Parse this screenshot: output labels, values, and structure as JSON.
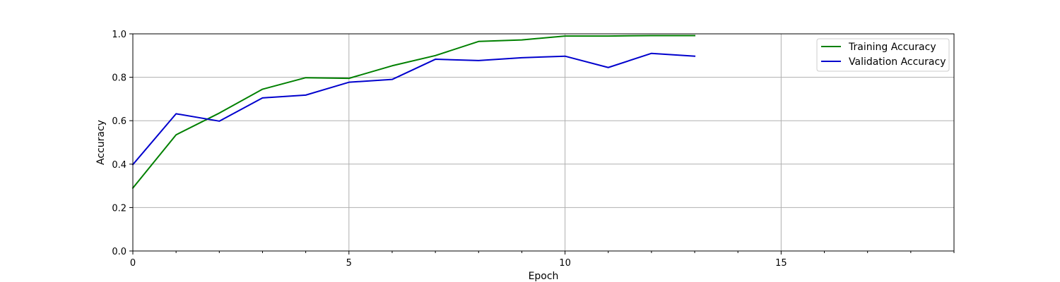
{
  "chart_data": {
    "type": "line",
    "title": "",
    "xlabel": "Epoch",
    "ylabel": "Accuracy",
    "xlim": [
      0,
      19
    ],
    "ylim": [
      0.0,
      1.0
    ],
    "x_ticks": [
      0,
      5,
      10,
      15
    ],
    "x_tick_labels": [
      "0",
      "5",
      "10",
      "15"
    ],
    "x_minor_ticks": [
      1,
      2,
      3,
      4,
      6,
      7,
      8,
      9,
      11,
      12,
      13,
      14,
      16,
      17,
      18,
      19
    ],
    "y_ticks": [
      0.0,
      0.2,
      0.4,
      0.6,
      0.8,
      1.0
    ],
    "y_tick_labels": [
      "0.0",
      "0.2",
      "0.4",
      "0.6",
      "0.8",
      "1.0"
    ],
    "grid": true,
    "legend_position": "top-right",
    "x": [
      0,
      1,
      2,
      3,
      4,
      5,
      6,
      7,
      8,
      9,
      10,
      11,
      12,
      13
    ],
    "series": [
      {
        "name": "Training Accuracy",
        "color": "#008000",
        "values": [
          0.29,
          0.535,
          0.635,
          0.745,
          0.798,
          0.795,
          0.853,
          0.9,
          0.965,
          0.972,
          0.99,
          0.99,
          0.992,
          0.992
        ]
      },
      {
        "name": "Validation Accuracy",
        "color": "#0000cd",
        "values": [
          0.398,
          0.632,
          0.598,
          0.705,
          0.718,
          0.777,
          0.79,
          0.883,
          0.877,
          0.89,
          0.897,
          0.845,
          0.91,
          0.897
        ]
      }
    ]
  }
}
